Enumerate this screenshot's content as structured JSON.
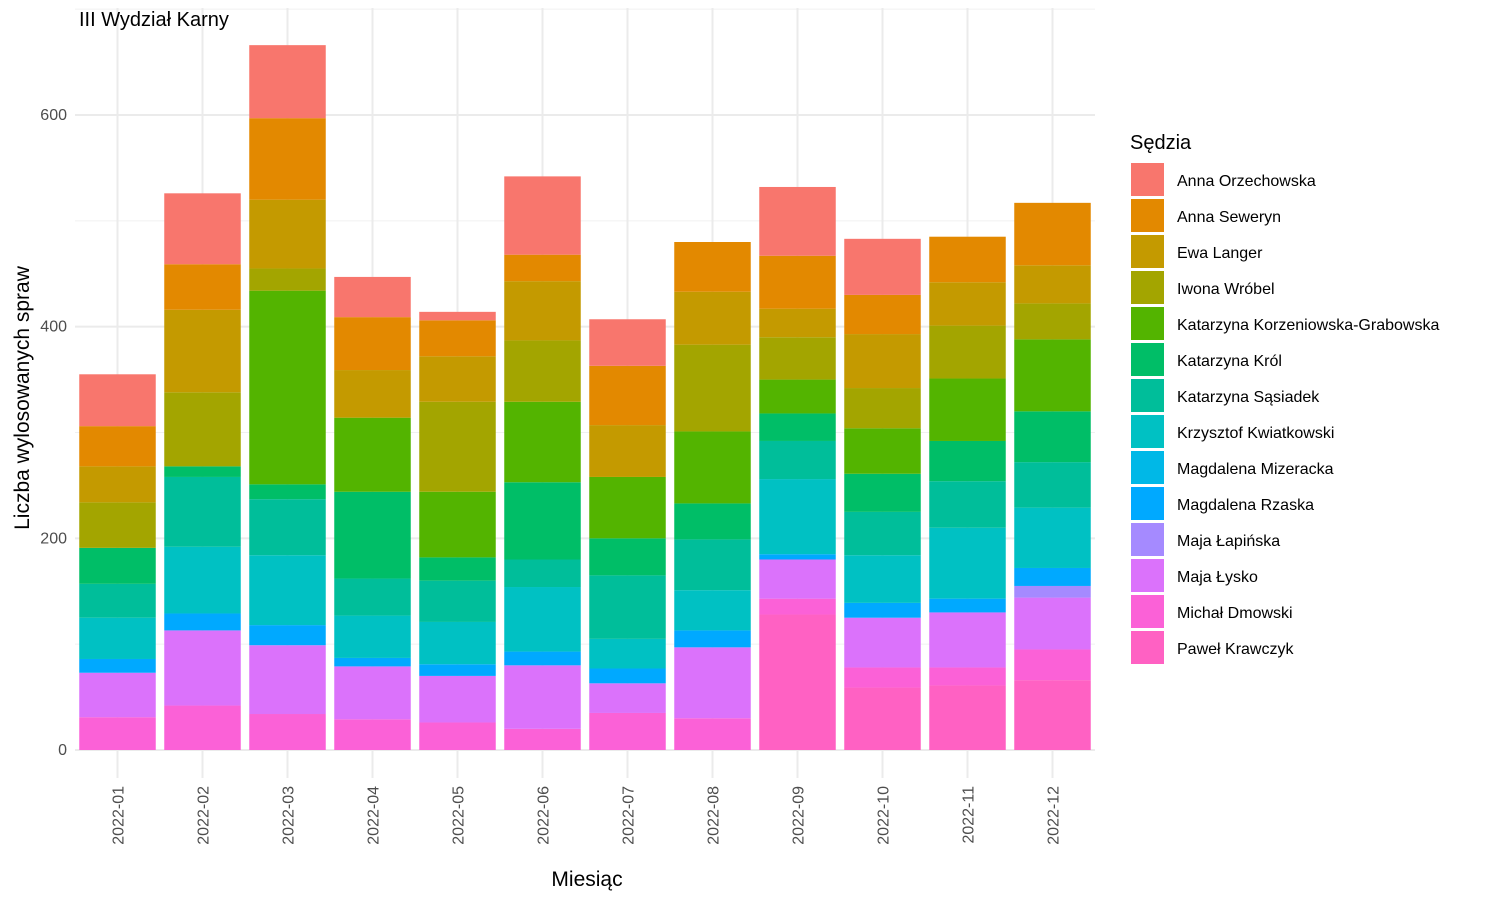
{
  "chart_data": {
    "type": "bar",
    "stacked": true,
    "title": "III Wydział Karny",
    "xlabel": "Miesiąc",
    "ylabel": "Liczba wylosowanych spraw",
    "ylim": [
      0,
      680
    ],
    "yticks": [
      0,
      200,
      400,
      600
    ],
    "grid": true,
    "legend_title": "Sędzia",
    "legend_position": "right",
    "categories": [
      "2022-01",
      "2022-02",
      "2022-03",
      "2022-04",
      "2022-05",
      "2022-06",
      "2022-07",
      "2022-08",
      "2022-09",
      "2022-10",
      "2022-11",
      "2022-12"
    ],
    "series": [
      {
        "name": "Paweł Krawczyk",
        "color": "#FF61C3",
        "values": [
          0,
          0,
          0,
          0,
          0,
          0,
          0,
          0,
          128,
          59,
          61,
          66
        ]
      },
      {
        "name": "Michał Dmowski",
        "color": "#FB61D7",
        "values": [
          31,
          42,
          34,
          29,
          26,
          20,
          35,
          30,
          15,
          19,
          17,
          29
        ]
      },
      {
        "name": "Maja Łysko",
        "color": "#DB72FB",
        "values": [
          42,
          71,
          65,
          50,
          44,
          60,
          28,
          67,
          37,
          47,
          52,
          49
        ]
      },
      {
        "name": "Maja Łapińska",
        "color": "#A58AFF",
        "values": [
          0,
          0,
          0,
          0,
          0,
          0,
          0,
          0,
          0,
          0,
          0,
          11
        ]
      },
      {
        "name": "Magdalena Rzaska",
        "color": "#00A9FF",
        "values": [
          13,
          16,
          19,
          8,
          11,
          13,
          14,
          16,
          5,
          14,
          13,
          17
        ]
      },
      {
        "name": "Magdalena Mizeracka",
        "color": "#00B8E7",
        "values": [
          0,
          0,
          0,
          0,
          0,
          0,
          0,
          0,
          0,
          0,
          0,
          0
        ]
      },
      {
        "name": "Krzysztof Kwiatkowski",
        "color": "#00C1C3",
        "values": [
          39,
          63,
          66,
          40,
          40,
          61,
          28,
          38,
          71,
          45,
          67,
          57
        ]
      },
      {
        "name": "Katarzyna Sąsiadek",
        "color": "#00BE9A",
        "values": [
          32,
          66,
          53,
          35,
          39,
          26,
          60,
          48,
          36,
          41,
          44,
          43
        ]
      },
      {
        "name": "Katarzyna Król",
        "color": "#00BE67",
        "values": [
          34,
          10,
          14,
          82,
          22,
          73,
          35,
          34,
          26,
          36,
          38,
          48
        ]
      },
      {
        "name": "Katarzyna Korzeniowska-Grabowska",
        "color": "#53B400",
        "values": [
          0,
          0,
          183,
          70,
          62,
          76,
          58,
          68,
          32,
          43,
          59,
          68
        ]
      },
      {
        "name": "Iwona Wróbel",
        "color": "#A3A500",
        "values": [
          43,
          70,
          21,
          0,
          85,
          58,
          0,
          82,
          40,
          38,
          50,
          34
        ]
      },
      {
        "name": "Ewa Langer",
        "color": "#C49A00",
        "values": [
          34,
          78,
          65,
          45,
          43,
          56,
          49,
          50,
          27,
          51,
          41,
          36
        ]
      },
      {
        "name": "Anna Seweryn",
        "color": "#E38900",
        "values": [
          38,
          43,
          77,
          50,
          34,
          25,
          56,
          47,
          50,
          37,
          43,
          59
        ]
      },
      {
        "name": "Anna Orzechowska",
        "color": "#F8766D",
        "values": [
          49,
          67,
          69,
          38,
          8,
          74,
          44,
          0,
          65,
          53,
          0,
          0
        ]
      }
    ]
  }
}
